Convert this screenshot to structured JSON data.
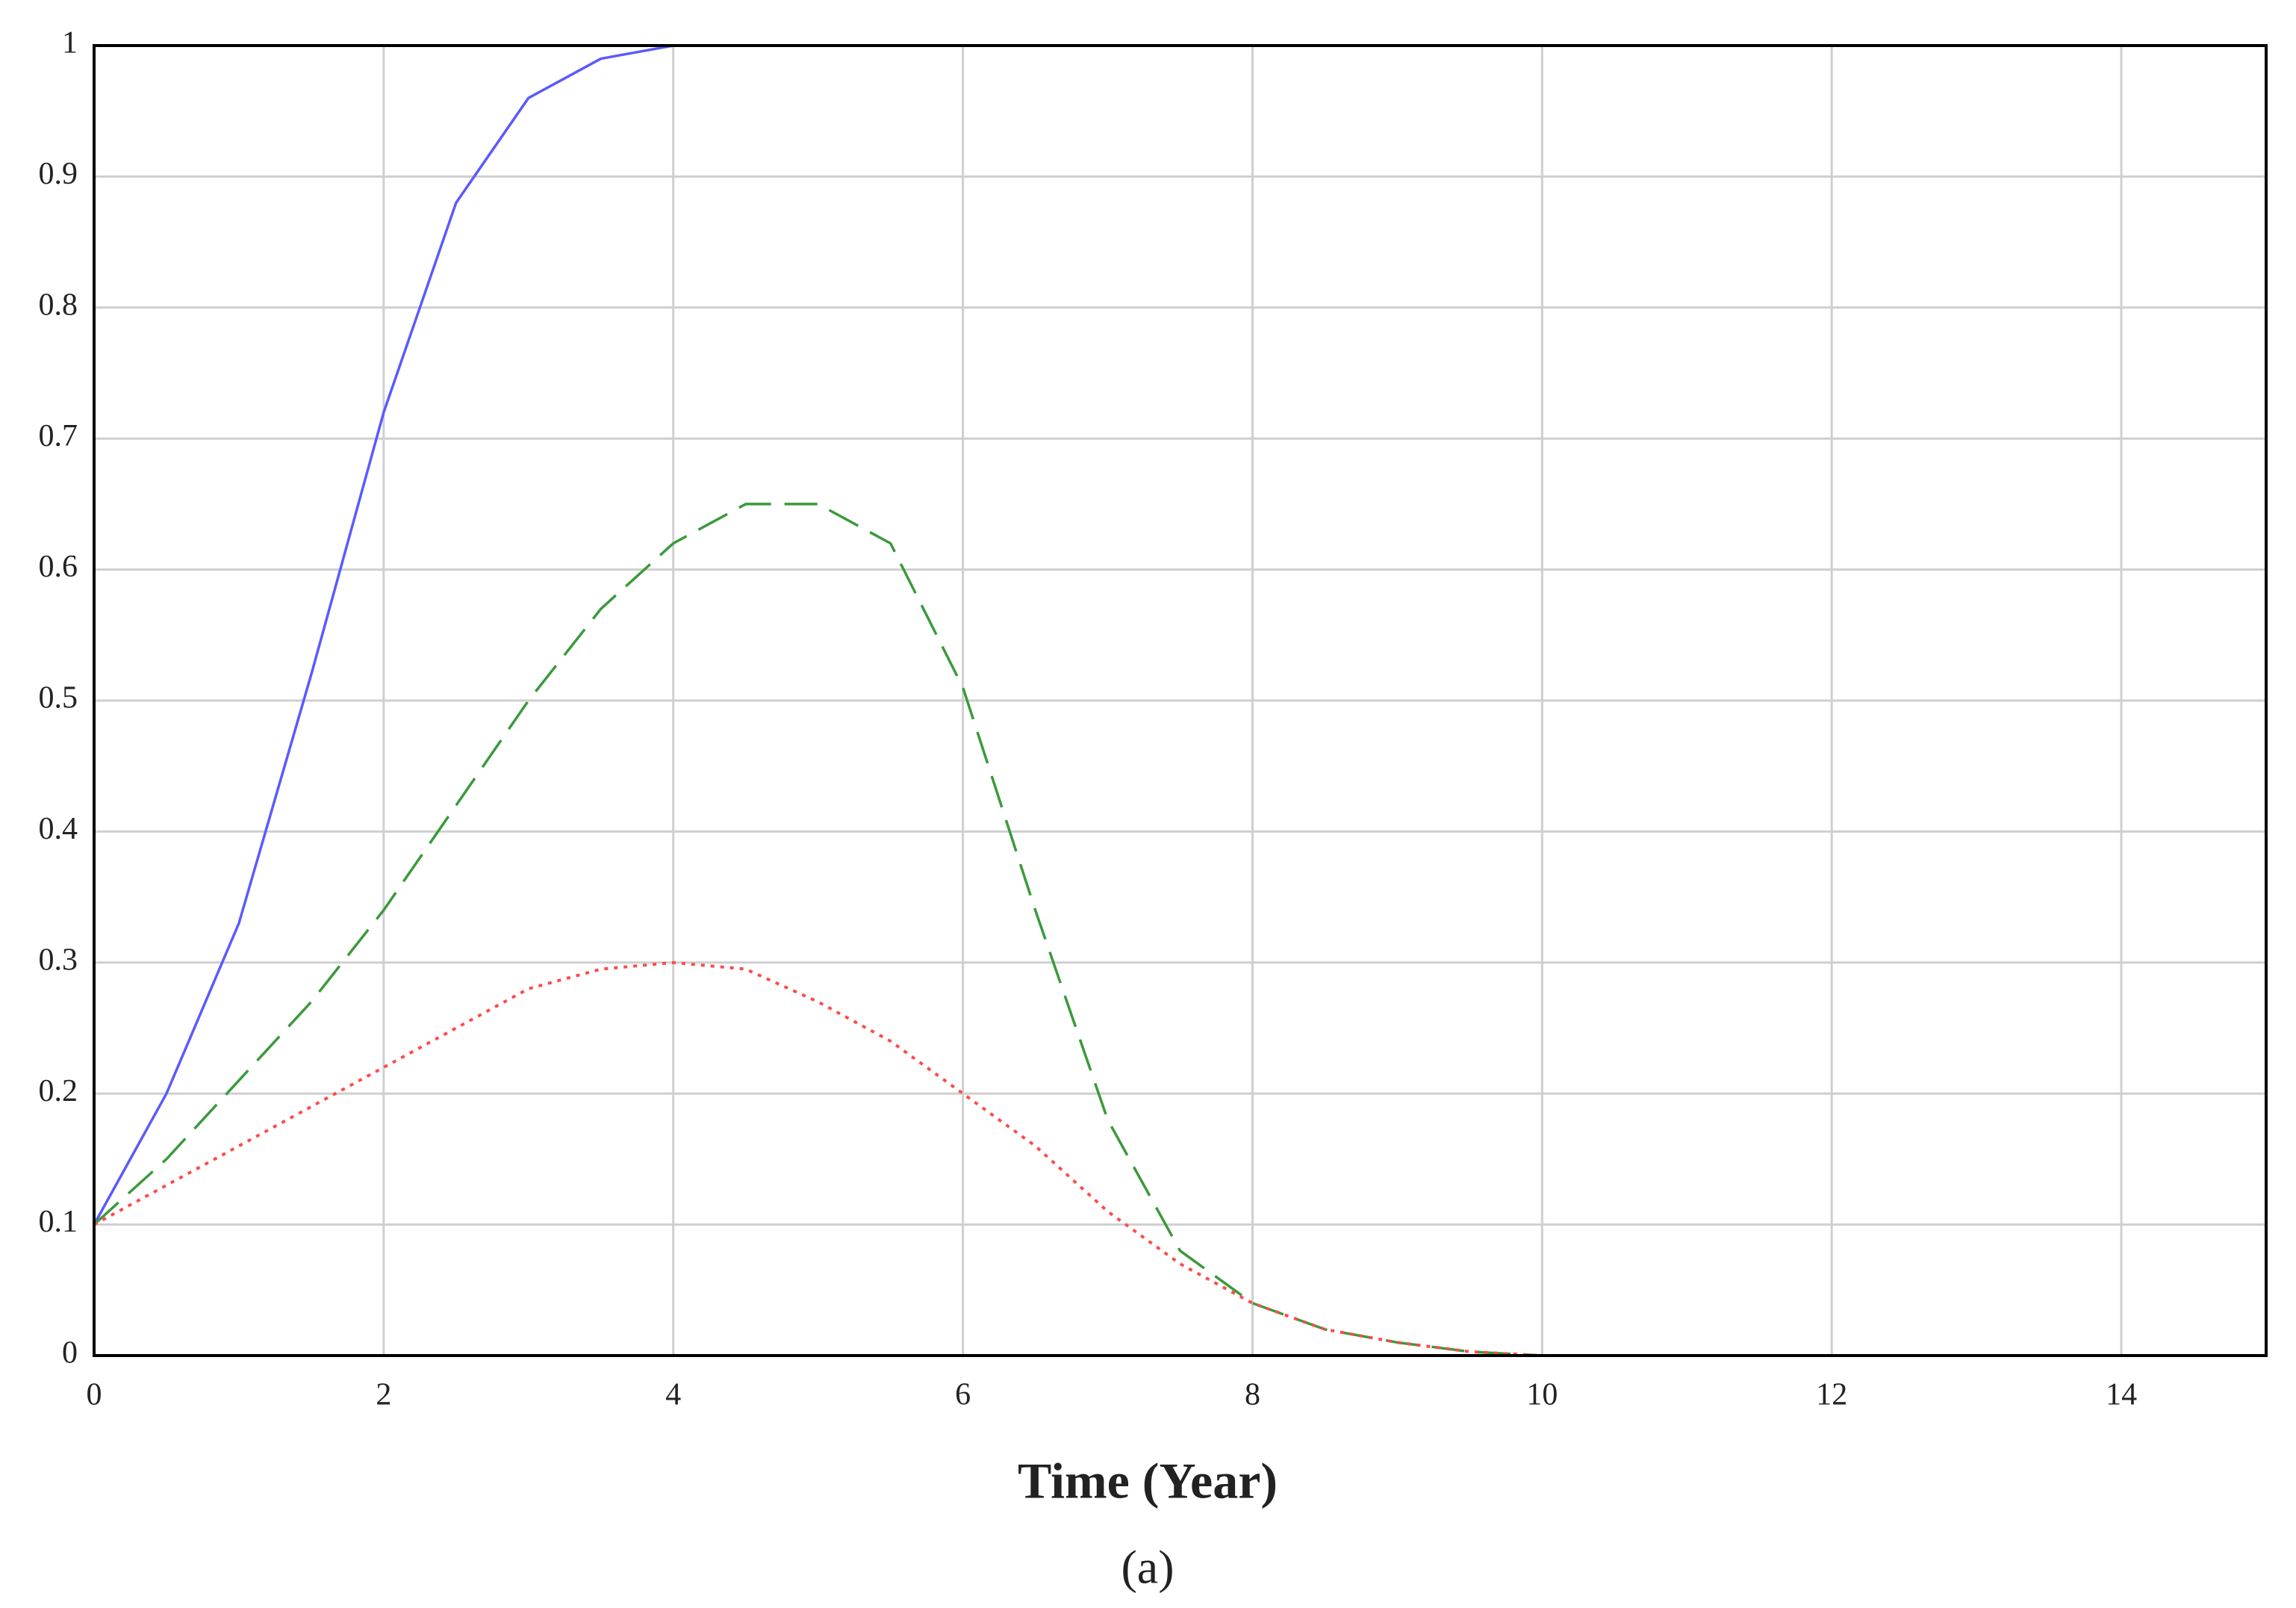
{
  "chart_data": {
    "type": "line",
    "xlabel": "Time (Year)",
    "caption": "(a)",
    "x": [
      0,
      0.5,
      1,
      1.5,
      2,
      2.5,
      3,
      3.5,
      4,
      4.5,
      5,
      5.5,
      6,
      6.5,
      7,
      7.5,
      8,
      8.5,
      9,
      9.5,
      10,
      10.5,
      11,
      11.5,
      12,
      12.5,
      13,
      13.5,
      14,
      14.5,
      15
    ],
    "series": [
      {
        "color": "#5a5aff",
        "dash": "solid",
        "values": [
          0.1,
          0.2,
          0.33,
          0.52,
          0.72,
          0.88,
          0.96,
          0.99,
          1,
          1,
          1,
          1,
          1,
          1,
          1,
          1,
          1,
          1,
          1,
          1,
          1,
          1,
          1,
          1,
          1,
          1,
          1,
          1,
          1,
          1,
          1
        ]
      },
      {
        "color": "#3a9a3a",
        "dash": "dashed",
        "values": [
          0.1,
          0.15,
          0.21,
          0.27,
          0.34,
          0.42,
          0.5,
          0.57,
          0.62,
          0.65,
          0.65,
          0.62,
          0.51,
          0.34,
          0.18,
          0.08,
          0.04,
          0.02,
          0.01,
          0.003,
          0,
          0,
          0,
          0,
          0,
          0,
          0,
          0,
          0,
          0,
          0
        ]
      },
      {
        "color": "#ff4a4a",
        "dash": "dotted",
        "values": [
          0.1,
          0.13,
          0.16,
          0.19,
          0.22,
          0.25,
          0.28,
          0.295,
          0.3,
          0.295,
          0.27,
          0.24,
          0.2,
          0.16,
          0.11,
          0.07,
          0.04,
          0.02,
          0.01,
          0.003,
          0,
          0,
          0,
          0,
          0,
          0,
          0,
          0,
          0,
          0,
          0
        ]
      }
    ],
    "xlim": [
      0,
      15
    ],
    "xticks": [
      0,
      2,
      4,
      6,
      8,
      10,
      12,
      14
    ],
    "ylim": [
      0,
      1
    ],
    "yticks": [
      0,
      0.1,
      0.2,
      0.3,
      0.4,
      0.5,
      0.6,
      0.7,
      0.8,
      0.9,
      1
    ],
    "grid": true
  }
}
